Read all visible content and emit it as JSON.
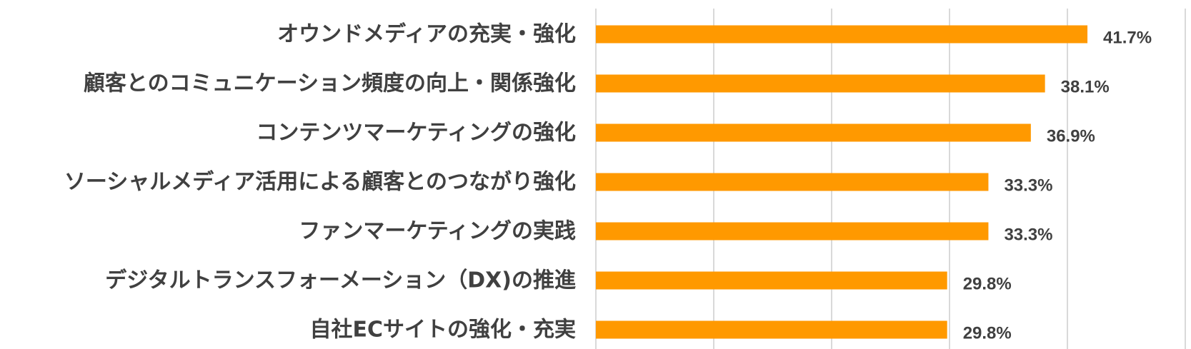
{
  "chart_data": {
    "type": "bar",
    "orientation": "horizontal",
    "categories": [
      "オウンドメディアの充実・強化",
      "顧客とのコミュニケーション頻度の向上・関係強化",
      "コンテンツマーケティングの強化",
      "ソーシャルメディア活用による顧客とのつながり強化",
      "ファンマーケティングの実践",
      "デジタルトランスフォーメーション（DX)の推進",
      "自社ECサイトの強化・充実"
    ],
    "values": [
      41.7,
      38.1,
      36.9,
      33.3,
      33.3,
      29.8,
      29.8
    ],
    "value_labels": [
      "41.7%",
      "38.1%",
      "36.9%",
      "33.3%",
      "33.3%",
      "29.8%",
      "29.8%"
    ],
    "xlim": [
      0,
      50
    ],
    "x_tick_step": 10,
    "grid": true,
    "legend": "none",
    "title": "",
    "xlabel": "",
    "ylabel": "",
    "colors": {
      "bar": "#FF9900",
      "label_text": "#404040",
      "grid": "#d9d9d9"
    }
  }
}
